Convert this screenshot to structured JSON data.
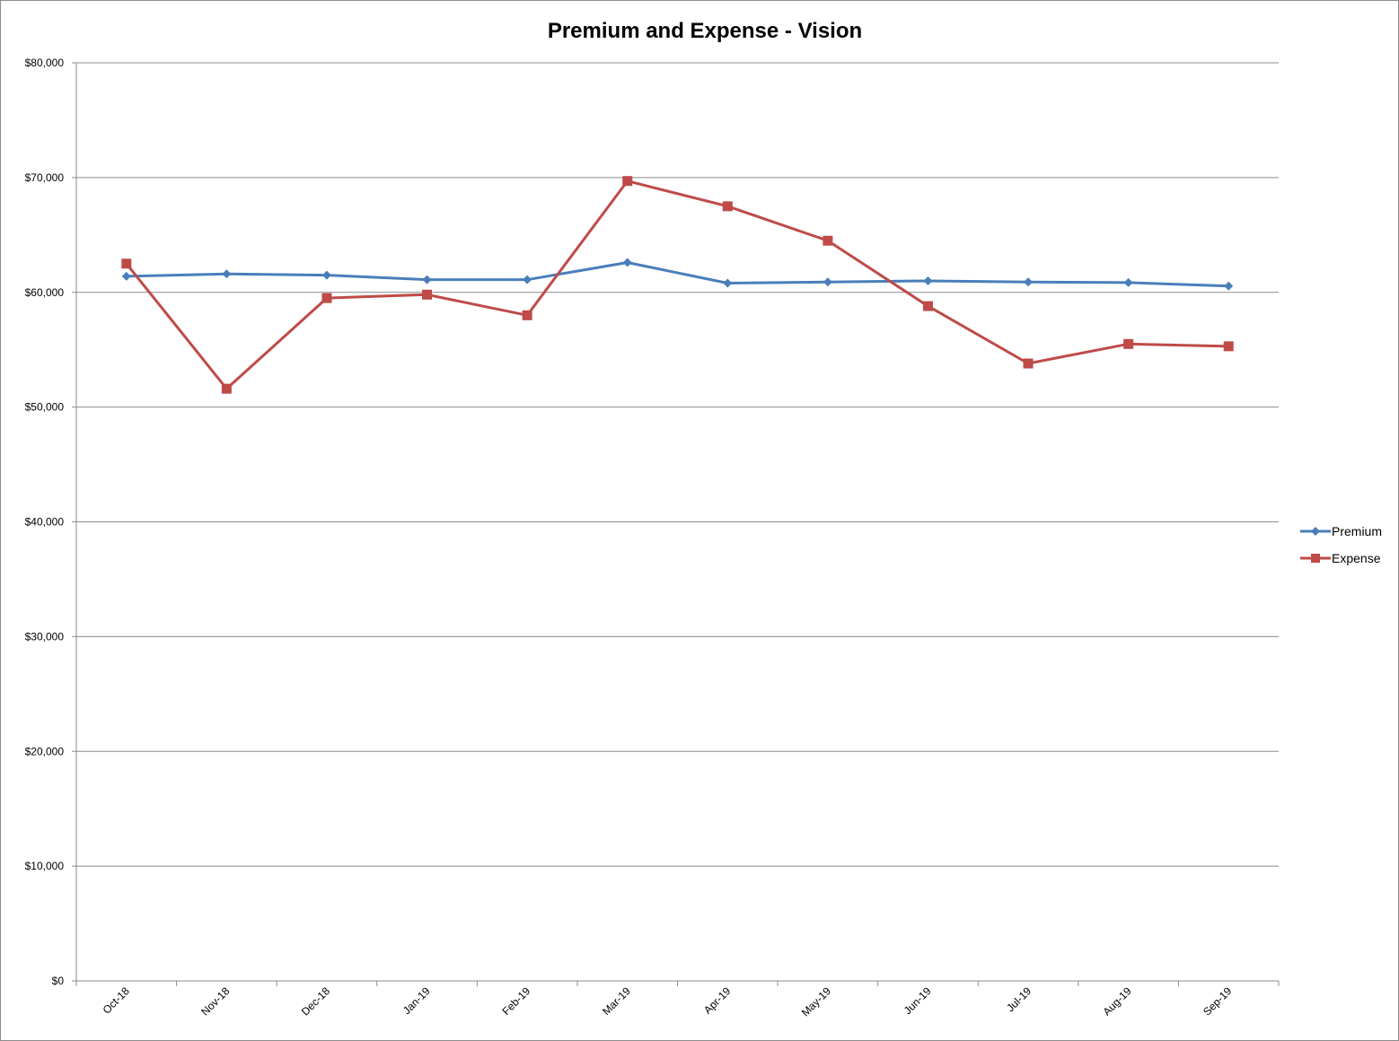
{
  "chart_data": {
    "type": "line",
    "title": "Premium and Expense - Vision",
    "xlabel": "",
    "ylabel": "",
    "categories": [
      "Oct-18",
      "Nov-18",
      "Dec-18",
      "Jan-19",
      "Feb-19",
      "Mar-19",
      "Apr-19",
      "May-19",
      "Jun-19",
      "Jul-19",
      "Aug-19",
      "Sep-19"
    ],
    "ylim": [
      0,
      80000
    ],
    "yticks": [
      0,
      10000,
      20000,
      30000,
      40000,
      50000,
      60000,
      70000,
      80000
    ],
    "ytick_labels": [
      "$0",
      "$10,000",
      "$20,000",
      "$30,000",
      "$40,000",
      "$50,000",
      "$60,000",
      "$70,000",
      "$80,000"
    ],
    "grid": "horizontal",
    "legend_position": "right",
    "series": [
      {
        "name": "Premium",
        "color": "#4a7ebb",
        "marker": "diamond",
        "values": [
          61400,
          61600,
          61500,
          61100,
          61100,
          62600,
          60800,
          60900,
          61000,
          60900,
          60850,
          60550
        ]
      },
      {
        "name": "Expense",
        "color": "#be4b48",
        "marker": "square",
        "values": [
          62500,
          51600,
          59500,
          59800,
          58000,
          69700,
          67500,
          64500,
          58800,
          53800,
          55500,
          55300
        ]
      }
    ]
  }
}
